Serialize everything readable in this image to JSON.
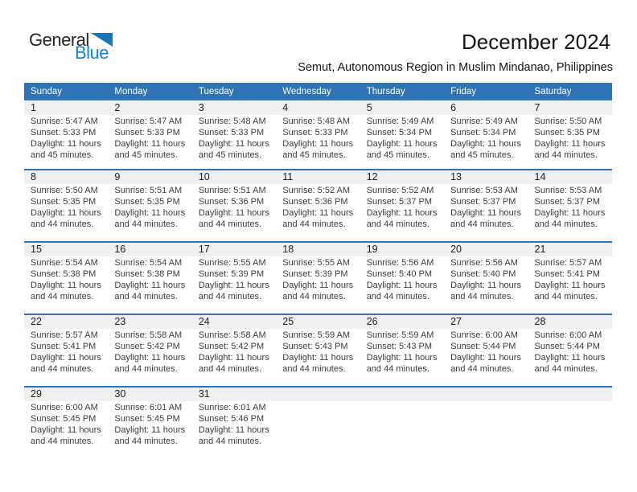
{
  "logo": {
    "line1": "General",
    "line2": "Blue",
    "triangle_color": "#1b74b8",
    "blue_text_color": "#1b7fc6"
  },
  "header": {
    "title": "December 2024",
    "subtitle": "Semut, Autonomous Region in Muslim Mindanao, Philippines"
  },
  "colors": {
    "weekday_header_bg": "#2e74b5",
    "weekday_header_text": "#ffffff",
    "week_divider": "#2e74b5",
    "day_number_band_bg": "#f0f0f0",
    "cell_text": "#3c3c3c"
  },
  "weekday_header": [
    "Sunday",
    "Monday",
    "Tuesday",
    "Wednesday",
    "Thursday",
    "Friday",
    "Saturday"
  ],
  "weeks": [
    [
      {
        "day": "1",
        "lines": [
          "Sunrise: 5:47 AM",
          "Sunset: 5:33 PM",
          "Daylight: 11 hours",
          "and 45 minutes."
        ]
      },
      {
        "day": "2",
        "lines": [
          "Sunrise: 5:47 AM",
          "Sunset: 5:33 PM",
          "Daylight: 11 hours",
          "and 45 minutes."
        ]
      },
      {
        "day": "3",
        "lines": [
          "Sunrise: 5:48 AM",
          "Sunset: 5:33 PM",
          "Daylight: 11 hours",
          "and 45 minutes."
        ]
      },
      {
        "day": "4",
        "lines": [
          "Sunrise: 5:48 AM",
          "Sunset: 5:33 PM",
          "Daylight: 11 hours",
          "and 45 minutes."
        ]
      },
      {
        "day": "5",
        "lines": [
          "Sunrise: 5:49 AM",
          "Sunset: 5:34 PM",
          "Daylight: 11 hours",
          "and 45 minutes."
        ]
      },
      {
        "day": "6",
        "lines": [
          "Sunrise: 5:49 AM",
          "Sunset: 5:34 PM",
          "Daylight: 11 hours",
          "and 45 minutes."
        ]
      },
      {
        "day": "7",
        "lines": [
          "Sunrise: 5:50 AM",
          "Sunset: 5:35 PM",
          "Daylight: 11 hours",
          "and 44 minutes."
        ]
      }
    ],
    [
      {
        "day": "8",
        "lines": [
          "Sunrise: 5:50 AM",
          "Sunset: 5:35 PM",
          "Daylight: 11 hours",
          "and 44 minutes."
        ]
      },
      {
        "day": "9",
        "lines": [
          "Sunrise: 5:51 AM",
          "Sunset: 5:35 PM",
          "Daylight: 11 hours",
          "and 44 minutes."
        ]
      },
      {
        "day": "10",
        "lines": [
          "Sunrise: 5:51 AM",
          "Sunset: 5:36 PM",
          "Daylight: 11 hours",
          "and 44 minutes."
        ]
      },
      {
        "day": "11",
        "lines": [
          "Sunrise: 5:52 AM",
          "Sunset: 5:36 PM",
          "Daylight: 11 hours",
          "and 44 minutes."
        ]
      },
      {
        "day": "12",
        "lines": [
          "Sunrise: 5:52 AM",
          "Sunset: 5:37 PM",
          "Daylight: 11 hours",
          "and 44 minutes."
        ]
      },
      {
        "day": "13",
        "lines": [
          "Sunrise: 5:53 AM",
          "Sunset: 5:37 PM",
          "Daylight: 11 hours",
          "and 44 minutes."
        ]
      },
      {
        "day": "14",
        "lines": [
          "Sunrise: 5:53 AM",
          "Sunset: 5:37 PM",
          "Daylight: 11 hours",
          "and 44 minutes."
        ]
      }
    ],
    [
      {
        "day": "15",
        "lines": [
          "Sunrise: 5:54 AM",
          "Sunset: 5:38 PM",
          "Daylight: 11 hours",
          "and 44 minutes."
        ]
      },
      {
        "day": "16",
        "lines": [
          "Sunrise: 5:54 AM",
          "Sunset: 5:38 PM",
          "Daylight: 11 hours",
          "and 44 minutes."
        ]
      },
      {
        "day": "17",
        "lines": [
          "Sunrise: 5:55 AM",
          "Sunset: 5:39 PM",
          "Daylight: 11 hours",
          "and 44 minutes."
        ]
      },
      {
        "day": "18",
        "lines": [
          "Sunrise: 5:55 AM",
          "Sunset: 5:39 PM",
          "Daylight: 11 hours",
          "and 44 minutes."
        ]
      },
      {
        "day": "19",
        "lines": [
          "Sunrise: 5:56 AM",
          "Sunset: 5:40 PM",
          "Daylight: 11 hours",
          "and 44 minutes."
        ]
      },
      {
        "day": "20",
        "lines": [
          "Sunrise: 5:56 AM",
          "Sunset: 5:40 PM",
          "Daylight: 11 hours",
          "and 44 minutes."
        ]
      },
      {
        "day": "21",
        "lines": [
          "Sunrise: 5:57 AM",
          "Sunset: 5:41 PM",
          "Daylight: 11 hours",
          "and 44 minutes."
        ]
      }
    ],
    [
      {
        "day": "22",
        "lines": [
          "Sunrise: 5:57 AM",
          "Sunset: 5:41 PM",
          "Daylight: 11 hours",
          "and 44 minutes."
        ]
      },
      {
        "day": "23",
        "lines": [
          "Sunrise: 5:58 AM",
          "Sunset: 5:42 PM",
          "Daylight: 11 hours",
          "and 44 minutes."
        ]
      },
      {
        "day": "24",
        "lines": [
          "Sunrise: 5:58 AM",
          "Sunset: 5:42 PM",
          "Daylight: 11 hours",
          "and 44 minutes."
        ]
      },
      {
        "day": "25",
        "lines": [
          "Sunrise: 5:59 AM",
          "Sunset: 5:43 PM",
          "Daylight: 11 hours",
          "and 44 minutes."
        ]
      },
      {
        "day": "26",
        "lines": [
          "Sunrise: 5:59 AM",
          "Sunset: 5:43 PM",
          "Daylight: 11 hours",
          "and 44 minutes."
        ]
      },
      {
        "day": "27",
        "lines": [
          "Sunrise: 6:00 AM",
          "Sunset: 5:44 PM",
          "Daylight: 11 hours",
          "and 44 minutes."
        ]
      },
      {
        "day": "28",
        "lines": [
          "Sunrise: 6:00 AM",
          "Sunset: 5:44 PM",
          "Daylight: 11 hours",
          "and 44 minutes."
        ]
      }
    ],
    [
      {
        "day": "29",
        "lines": [
          "Sunrise: 6:00 AM",
          "Sunset: 5:45 PM",
          "Daylight: 11 hours",
          "and 44 minutes."
        ]
      },
      {
        "day": "30",
        "lines": [
          "Sunrise: 6:01 AM",
          "Sunset: 5:45 PM",
          "Daylight: 11 hours",
          "and 44 minutes."
        ]
      },
      {
        "day": "31",
        "lines": [
          "Sunrise: 6:01 AM",
          "Sunset: 5:46 PM",
          "Daylight: 11 hours",
          "and 44 minutes."
        ]
      },
      {
        "day": "",
        "lines": []
      },
      {
        "day": "",
        "lines": []
      },
      {
        "day": "",
        "lines": []
      },
      {
        "day": "",
        "lines": []
      }
    ]
  ]
}
